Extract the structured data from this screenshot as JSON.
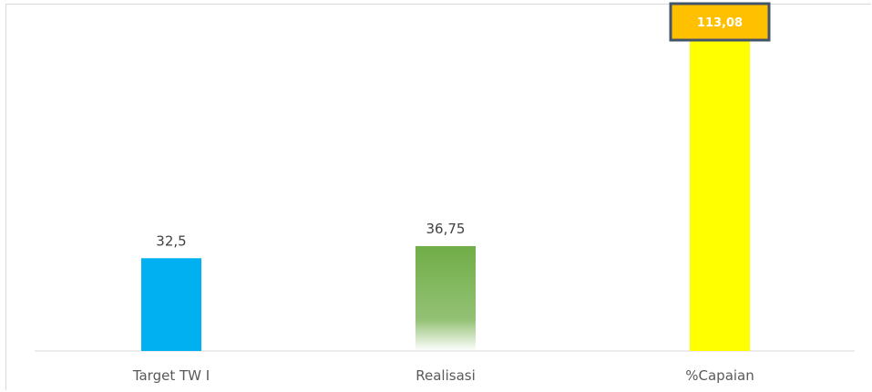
{
  "chart_data": {
    "type": "bar",
    "categories": [
      "Target TW I",
      "Realisasi",
      "%Capaian"
    ],
    "values": [
      32.5,
      36.75,
      113.08
    ],
    "value_labels": [
      "32,5",
      "36,75",
      "113,08"
    ],
    "colors": [
      "#00b0f0",
      "#70ad47",
      "#ffff00"
    ],
    "callout_color": "#ffc000",
    "callout_border": "#44546a",
    "grid": false,
    "legend": "none",
    "ylim": [
      0,
      113.08
    ]
  }
}
